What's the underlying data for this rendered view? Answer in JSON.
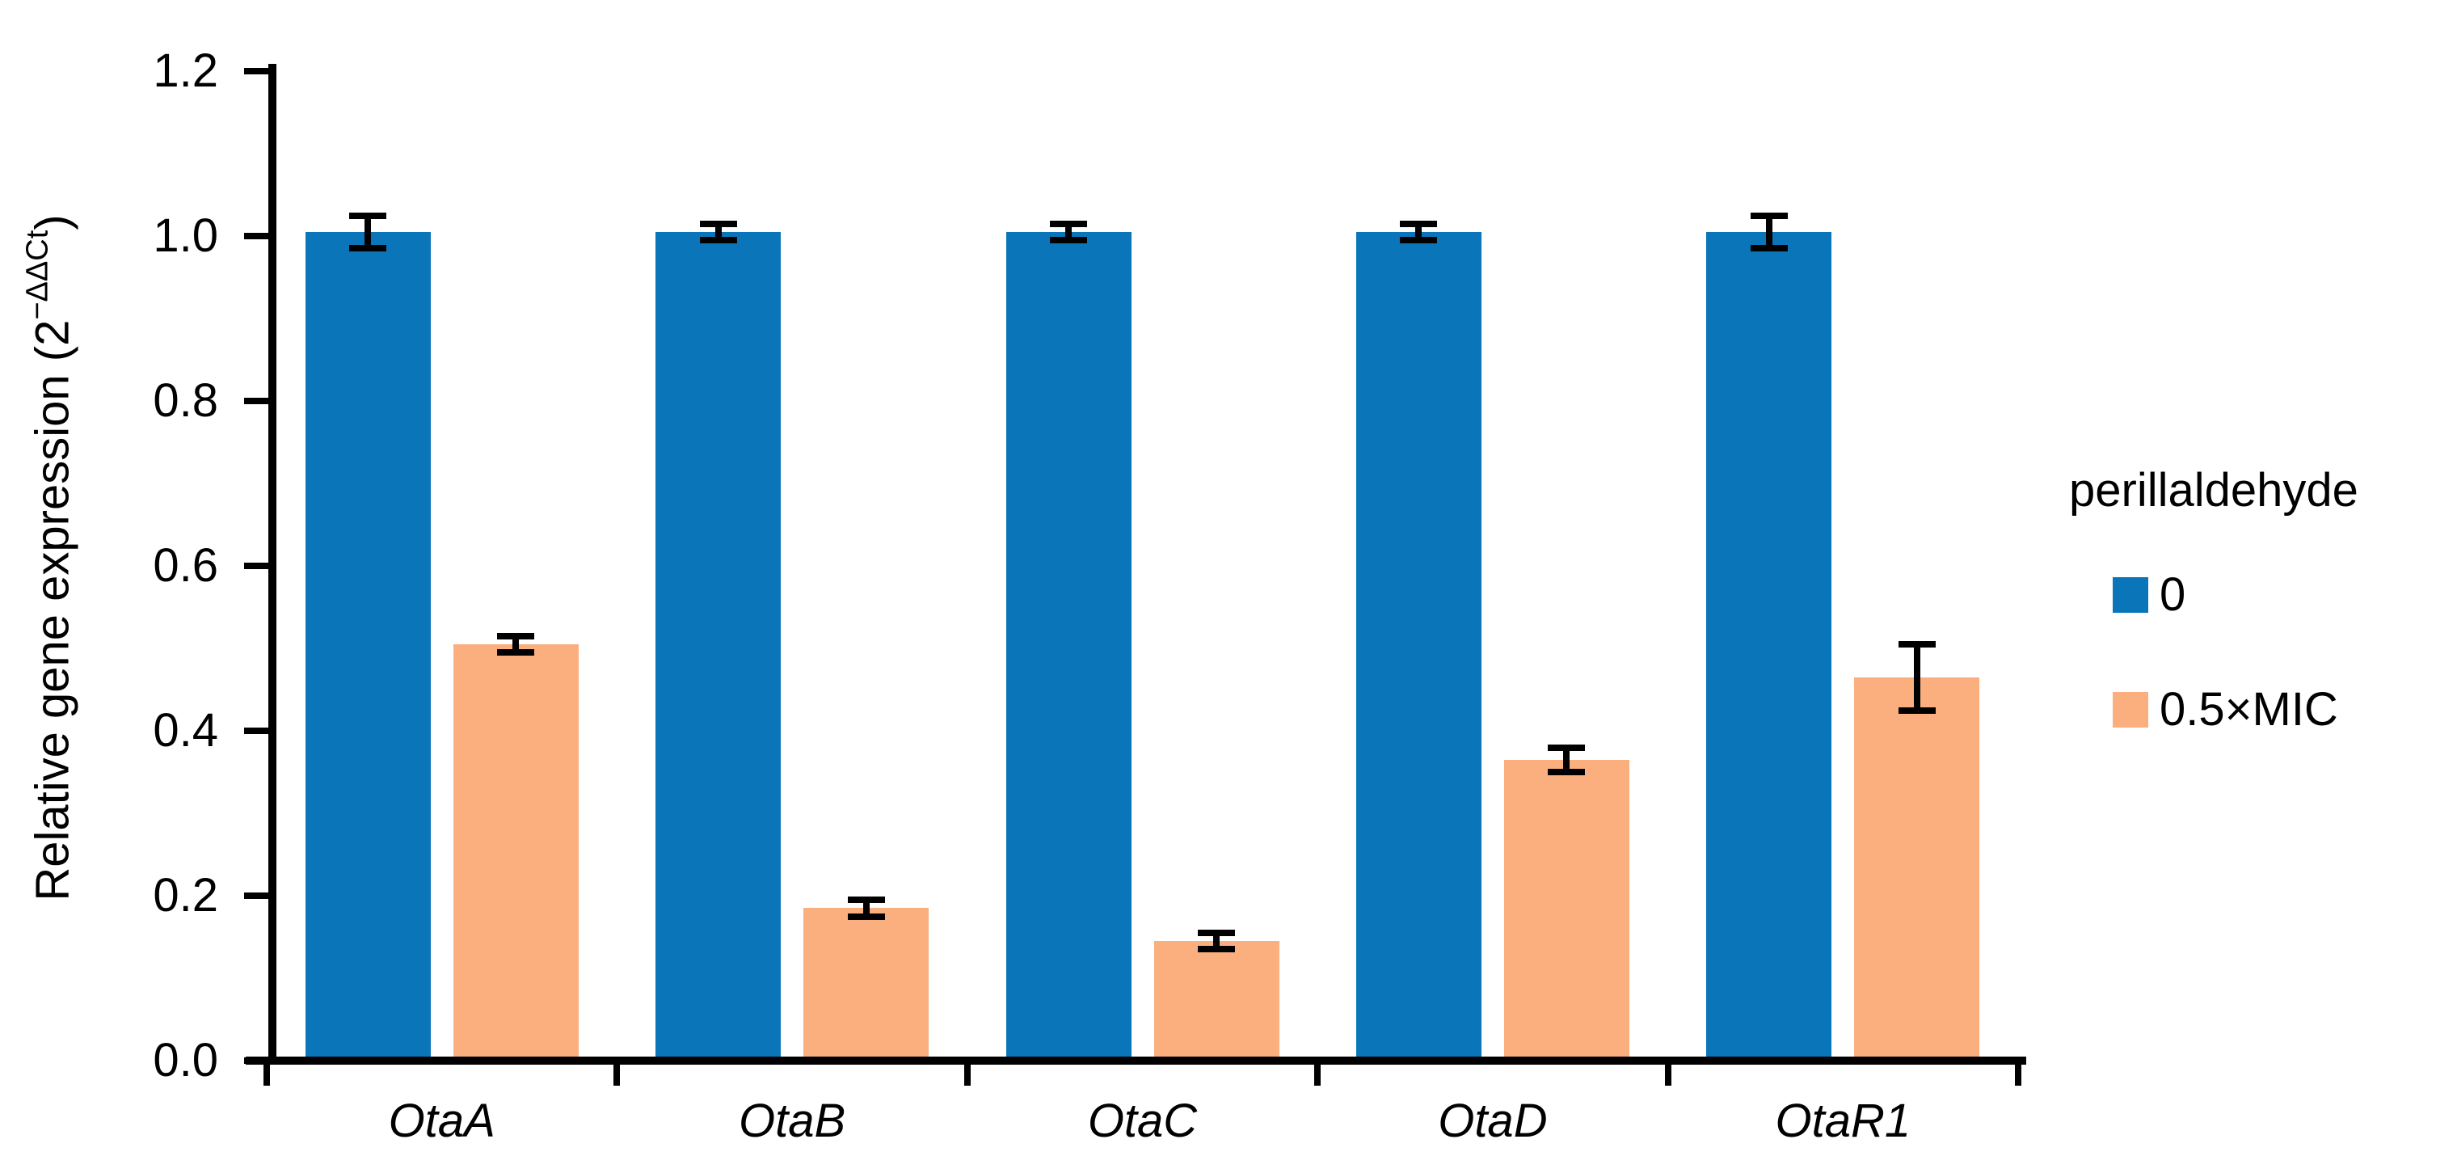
{
  "chart_data": {
    "type": "bar",
    "title": "",
    "categories": [
      "OtaA",
      "OtaB",
      "OtaC",
      "OtaD",
      "OtaR1"
    ],
    "series": [
      {
        "name": "0",
        "color": "#0a75b8",
        "values": [
          1.0,
          1.0,
          1.0,
          1.0,
          1.0
        ],
        "errors": [
          0.02,
          0.01,
          0.01,
          0.01,
          0.02
        ]
      },
      {
        "name": "0.5×MIC",
        "color": "#fbae7e",
        "values": [
          0.5,
          0.18,
          0.14,
          0.36,
          0.46
        ],
        "errors": [
          0.01,
          0.01,
          0.01,
          0.015,
          0.04
        ]
      }
    ],
    "ylabel": {
      "prefix": "Relative gene expression (2",
      "sup": "−ΔΔCt",
      "suffix": ")"
    },
    "ylim": [
      0,
      1.2
    ],
    "yticks": [
      "0.0",
      "0.2",
      "0.4",
      "0.6",
      "0.8",
      "1.0",
      "1.2"
    ],
    "legend": {
      "title": "perillaldehyde",
      "position": "right"
    },
    "grid": false,
    "axis_color": "#000000",
    "error_bar_color": "#000000",
    "background_color": "#ffffff"
  }
}
